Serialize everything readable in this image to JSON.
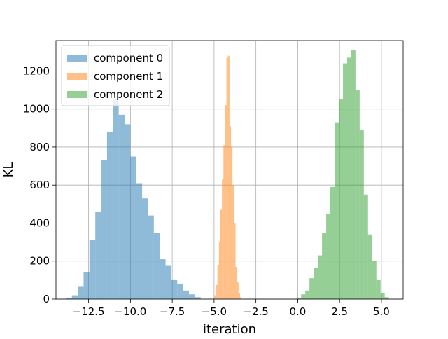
{
  "chart_data": {
    "type": "histogram",
    "title": "",
    "xlabel": "iteration",
    "ylabel": "KL",
    "xlim": [
      -14.45,
      6.3
    ],
    "ylim": [
      0,
      1360
    ],
    "grid": true,
    "legend_position": "top-left",
    "x_ticks": [
      -12.5,
      -10.0,
      -7.5,
      -5.0,
      -2.5,
      0.0,
      2.5,
      5.0
    ],
    "x_tick_labels": [
      "−12.5",
      "−10.0",
      "−7.5",
      "−5.0",
      "−2.5",
      "0.0",
      "2.5",
      "5.0"
    ],
    "y_ticks": [
      0,
      200,
      400,
      600,
      800,
      1000,
      1200
    ],
    "y_tick_labels": [
      "0",
      "200",
      "400",
      "600",
      "800",
      "1000",
      "1200"
    ],
    "series": [
      {
        "name": "component 0",
        "color": "#1f77b4",
        "alpha": 0.5,
        "bin_start": -13.85,
        "bin_width": 0.35,
        "counts": [
          5,
          20,
          65,
          140,
          310,
          460,
          730,
          880,
          1050,
          970,
          920,
          750,
          610,
          530,
          440,
          350,
          210,
          175,
          100,
          80,
          45,
          25,
          10
        ]
      },
      {
        "name": "component 1",
        "color": "#ff7f0e",
        "alpha": 0.5,
        "bin_start": -5.07,
        "bin_width": 0.09,
        "counts": [
          5,
          20,
          75,
          180,
          300,
          470,
          630,
          810,
          1020,
          1270,
          1280,
          910,
          800,
          600,
          400,
          170,
          90,
          30,
          10
        ]
      },
      {
        "name": "component 2",
        "color": "#2ca02c",
        "alpha": 0.5,
        "bin_start": -0.05,
        "bin_width": 0.25,
        "counts": [
          5,
          25,
          45,
          110,
          165,
          230,
          350,
          450,
          590,
          930,
          1050,
          1240,
          1270,
          1310,
          1100,
          890,
          550,
          340,
          200,
          100,
          30,
          10
        ]
      }
    ]
  }
}
